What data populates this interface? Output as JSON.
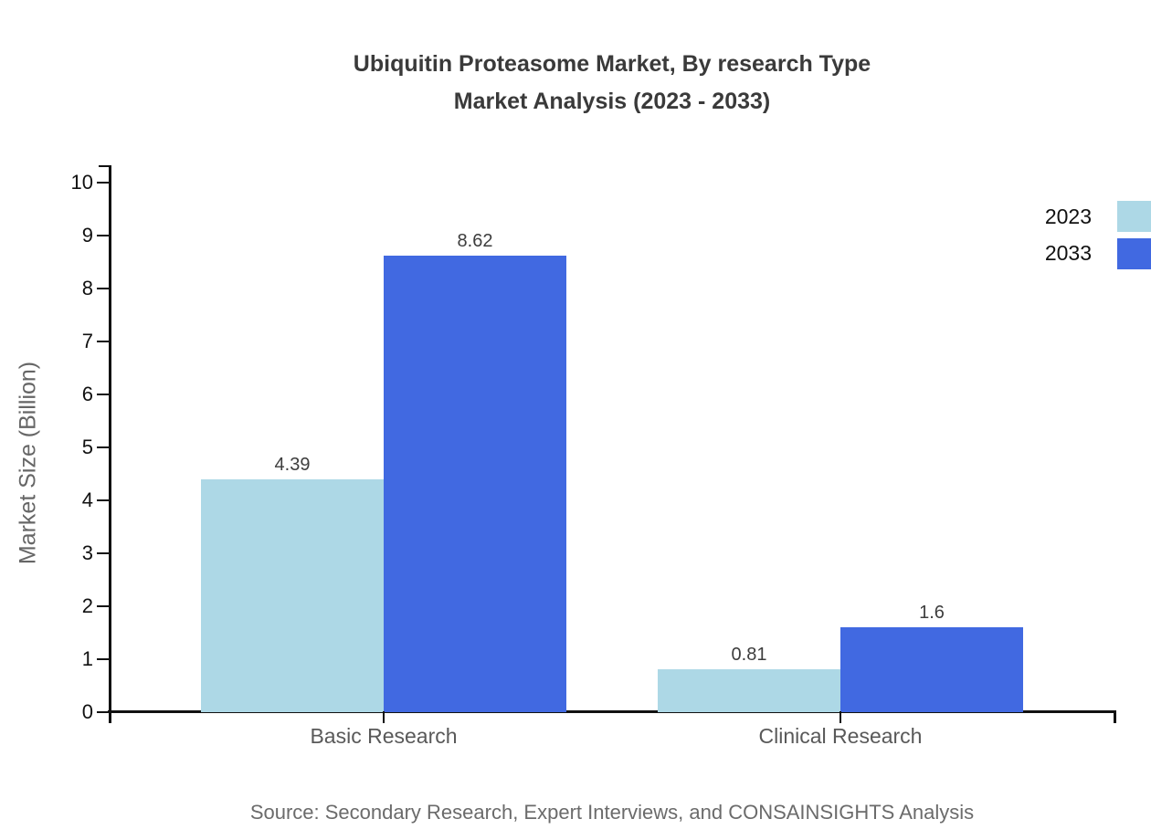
{
  "title": {
    "line1": "Ubiquitin Proteasome Market, By research Type",
    "line2": "Market Analysis (2023 - 2033)"
  },
  "chart_data": {
    "type": "bar",
    "title": "Ubiquitin Proteasome Market, By research Type Market Analysis (2023 - 2033)",
    "categories": [
      "Basic Research",
      "Clinical Research"
    ],
    "series": [
      {
        "name": "2023",
        "color": "#ADD8E6",
        "values": [
          4.39,
          0.81
        ]
      },
      {
        "name": "2033",
        "color": "#4169E1",
        "values": [
          8.62,
          1.6
        ]
      }
    ],
    "value_labels": [
      [
        "4.39",
        "0.81"
      ],
      [
        "8.62",
        "1.6"
      ]
    ],
    "xlabel": "",
    "ylabel": "Market Size (Billion)",
    "ylim": [
      0,
      10
    ],
    "yticks": [
      0,
      1,
      2,
      3,
      4,
      5,
      6,
      7,
      8,
      9,
      10
    ],
    "grid": false,
    "legend_position": "upper-right-edge"
  },
  "legend": {
    "items": [
      {
        "label": "2023",
        "color": "#ADD8E6"
      },
      {
        "label": "2033",
        "color": "#4169E1"
      }
    ]
  },
  "source": {
    "text": "Source: Secondary Research, Expert Interviews, and CONSAINSIGHTS Analysis"
  },
  "colors": {
    "series_2023": "#ADD8E6",
    "series_2033": "#4169E1",
    "axis": "#111111",
    "title_text": "#3a3a3a",
    "muted_text": "#6b6b6b",
    "background": "#ffffff"
  }
}
